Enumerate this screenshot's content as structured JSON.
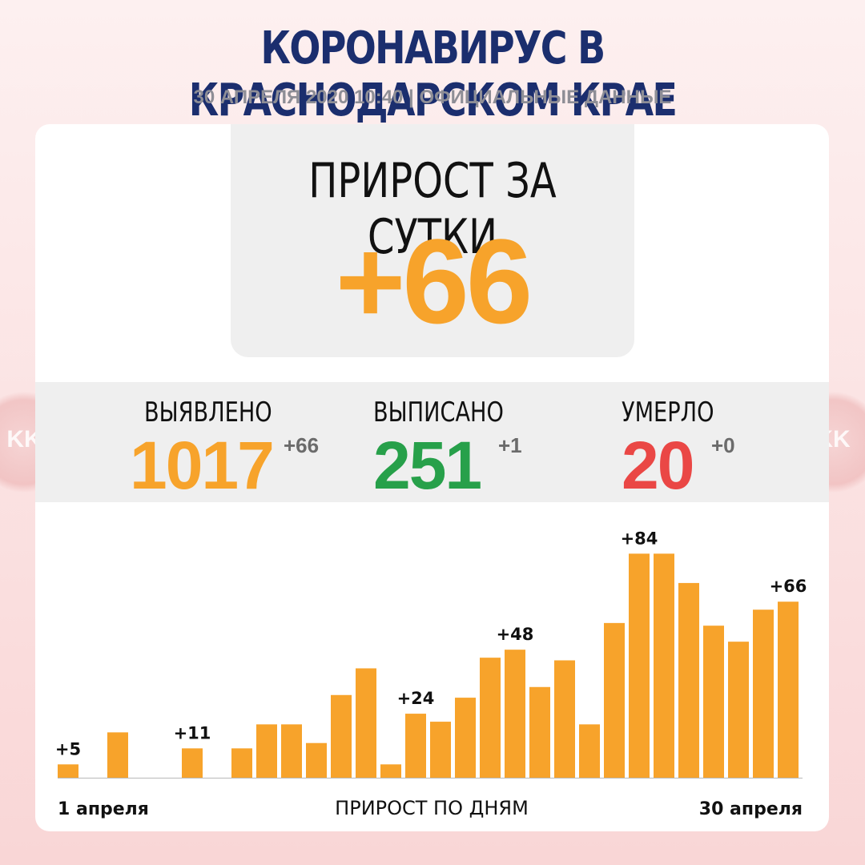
{
  "header": {
    "title": "КОРОНАВИРУС В КРАСНОДАРСКОМ КРАЕ",
    "subtitle": "30 АПРЕЛЯ 2020 10:40 | ОФИЦИАЛЬНЫЕ ДАННЫЕ"
  },
  "watermark": {
    "text": "KK"
  },
  "hero": {
    "label": "ПРИРОСТ ЗА СУТКИ",
    "value": "+66",
    "color": "#f7a32b"
  },
  "stats": [
    {
      "label": "ВЫЯВЛЕНО",
      "value": "1017",
      "delta": "+66",
      "color": "#f7a32b"
    },
    {
      "label": "ВЫПИСАНО",
      "value": "251",
      "delta": "+1",
      "color": "#27a04a"
    },
    {
      "label": "УМЕРЛО",
      "value": "20",
      "delta": "+0",
      "color": "#ea4745"
    }
  ],
  "chart_data": {
    "type": "bar",
    "xlabel": "ПРИРОСТ ПО ДНЯМ",
    "x_start_label": "1 апреля",
    "x_end_label": "30 апреля",
    "categories": [
      "1",
      "2",
      "3",
      "4",
      "5",
      "6",
      "7",
      "8",
      "9",
      "10",
      "11",
      "12",
      "13",
      "14",
      "15",
      "16",
      "17",
      "18",
      "19",
      "20",
      "21",
      "22",
      "23",
      "24",
      "25",
      "26",
      "27",
      "28",
      "29",
      "30"
    ],
    "values": [
      5,
      0,
      17,
      0,
      0,
      11,
      0,
      11,
      20,
      20,
      13,
      31,
      41,
      5,
      24,
      21,
      30,
      45,
      48,
      34,
      44,
      20,
      58,
      84,
      84,
      73,
      57,
      51,
      63,
      66
    ],
    "labels": [
      "+5",
      "",
      "",
      "",
      "",
      "+11",
      "",
      "",
      "",
      "",
      "",
      "",
      "",
      "",
      "+24",
      "",
      "",
      "",
      "+48",
      "",
      "",
      "",
      "",
      "+84",
      "",
      "",
      "",
      "",
      "",
      "+66"
    ],
    "bar_color": "#f7a32b"
  }
}
